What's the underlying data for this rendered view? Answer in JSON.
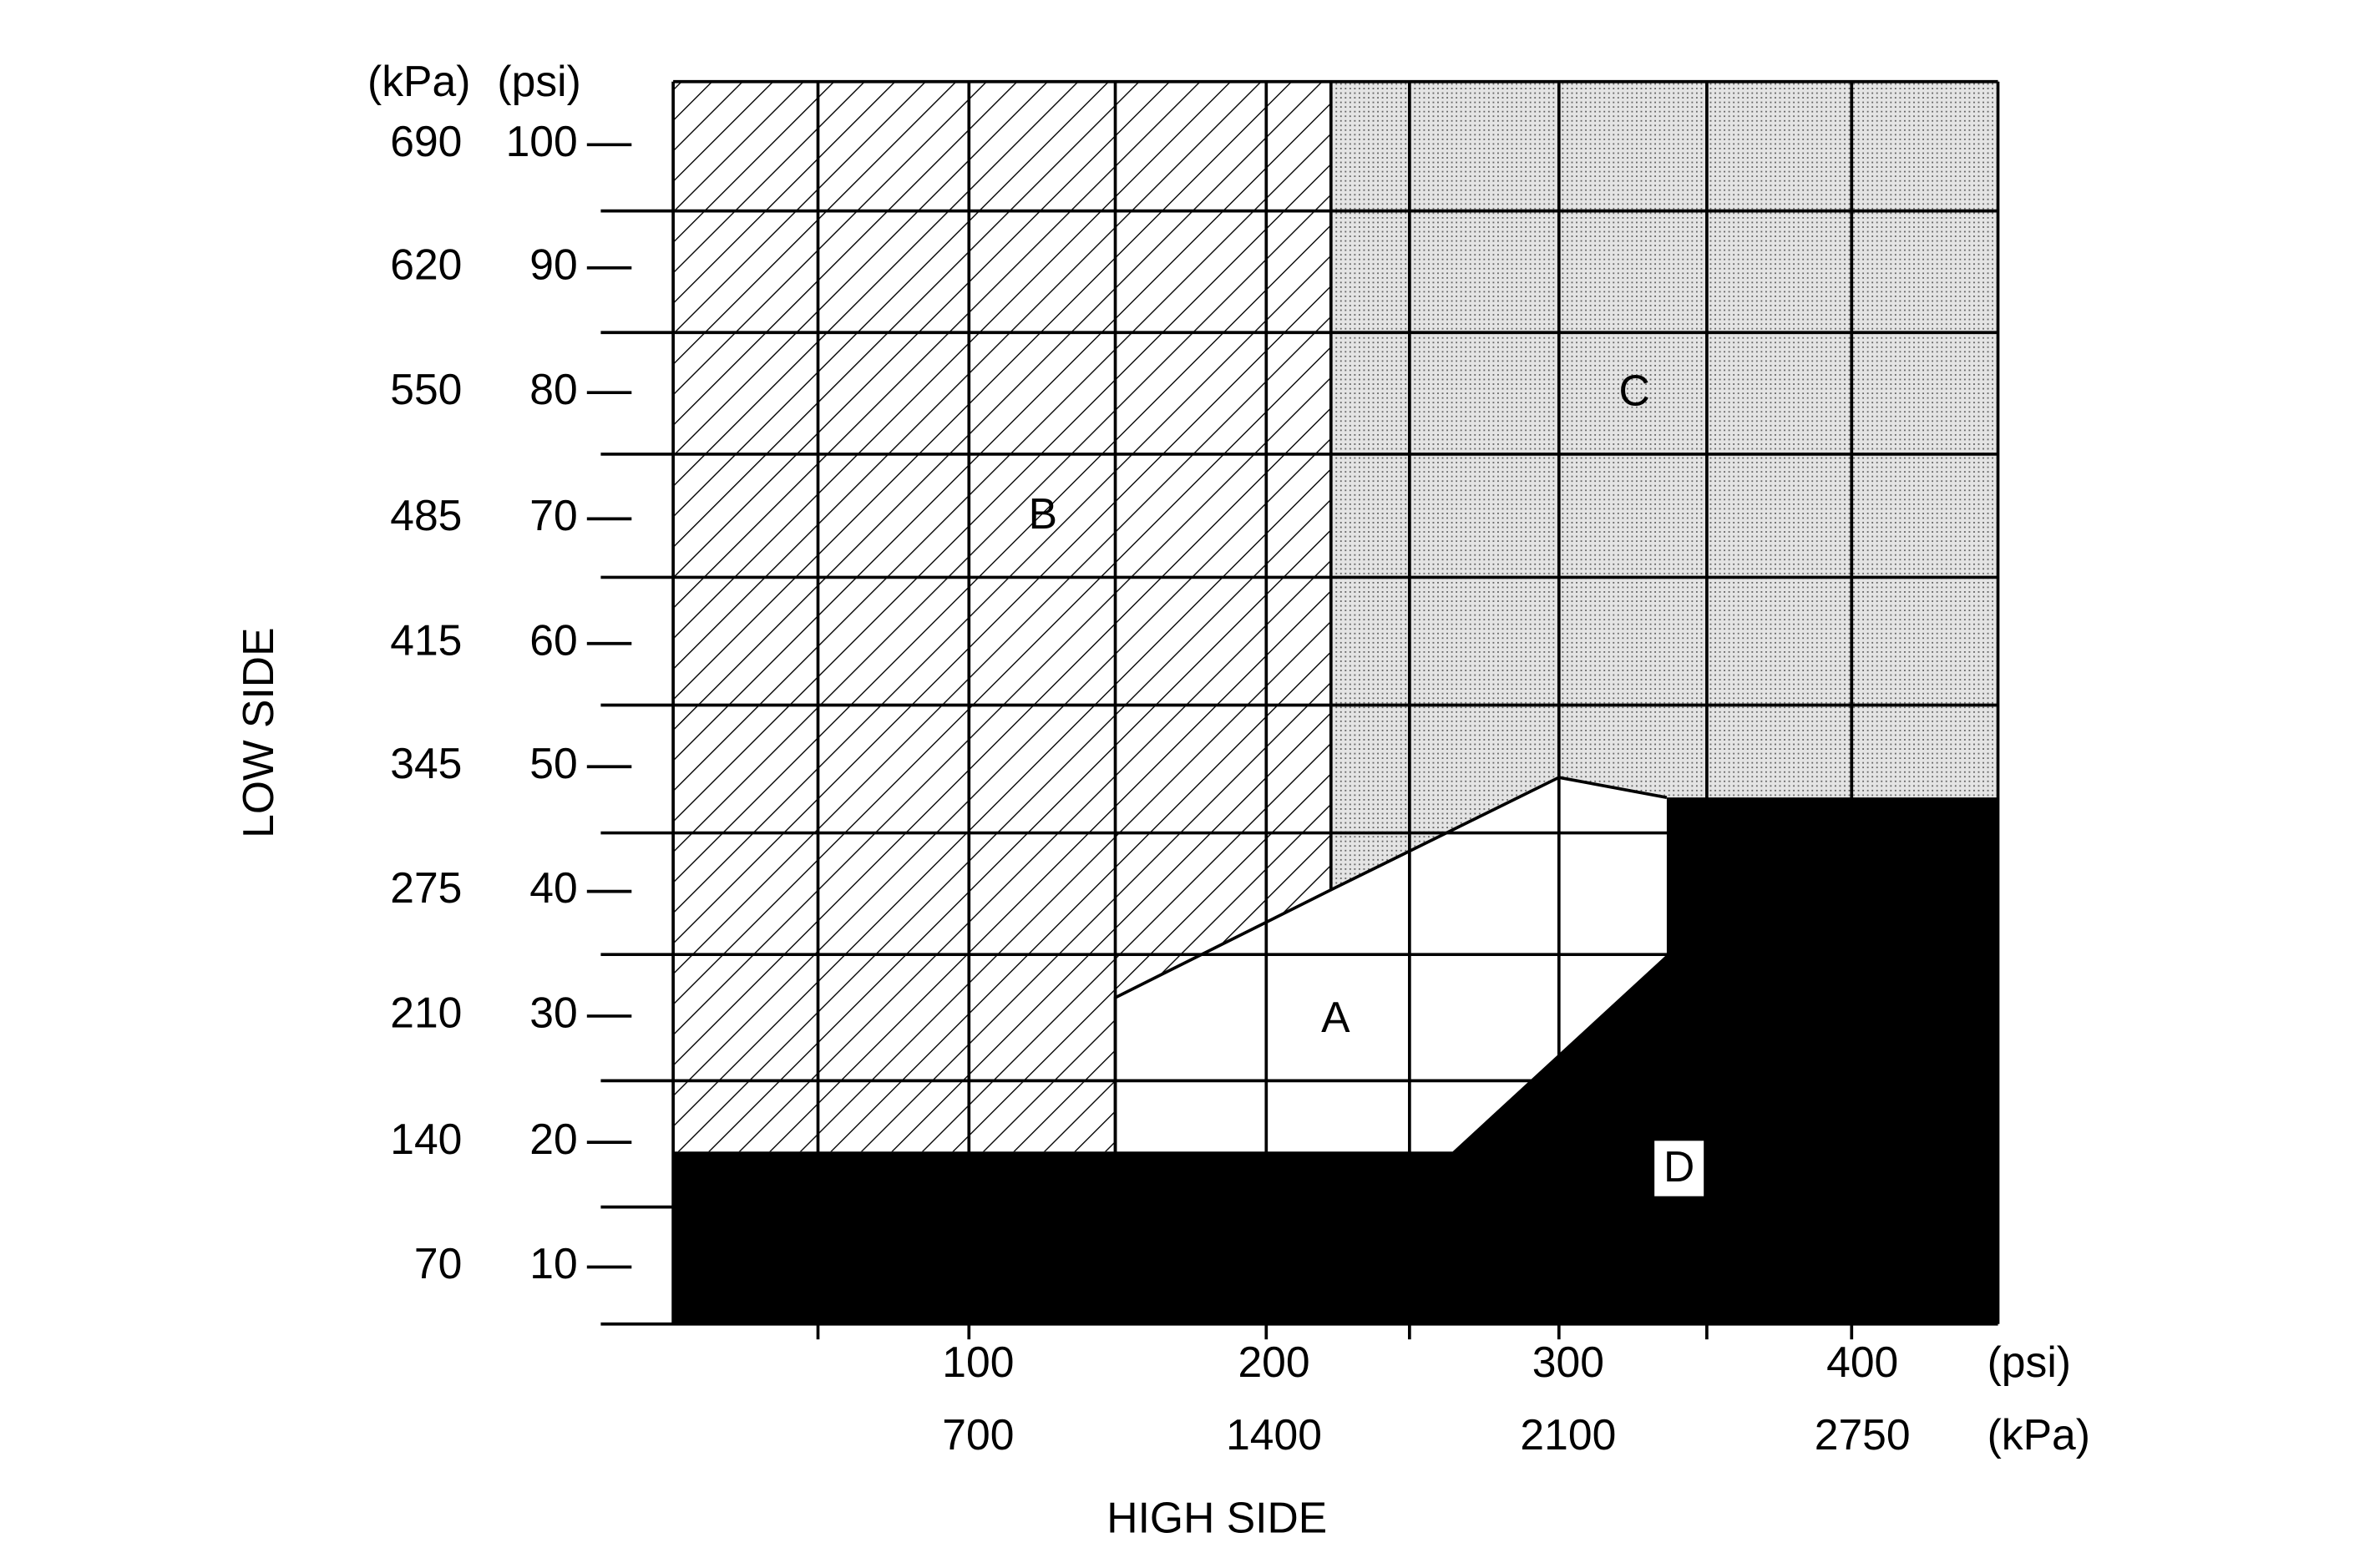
{
  "low_side": {
    "title": "LOW SIDE",
    "unit_kpa": "(kPa)",
    "unit_psi": "(psi)",
    "ticks": [
      {
        "kpa": "690",
        "psi": "100"
      },
      {
        "kpa": "620",
        "psi": "90"
      },
      {
        "kpa": "550",
        "psi": "80"
      },
      {
        "kpa": "485",
        "psi": "70"
      },
      {
        "kpa": "415",
        "psi": "60"
      },
      {
        "kpa": "345",
        "psi": "50"
      },
      {
        "kpa": "275",
        "psi": "40"
      },
      {
        "kpa": "210",
        "psi": "30"
      },
      {
        "kpa": "140",
        "psi": "20"
      },
      {
        "kpa": "70",
        "psi": "10"
      }
    ]
  },
  "high_side": {
    "title": "HIGH SIDE",
    "unit_psi": "(psi)",
    "unit_kpa": "(kPa)",
    "ticks": [
      {
        "psi": "100",
        "kpa": "700"
      },
      {
        "psi": "200",
        "kpa": "1400"
      },
      {
        "psi": "300",
        "kpa": "2100"
      },
      {
        "psi": "400",
        "kpa": "2750"
      }
    ]
  },
  "regions": [
    {
      "label": "A"
    },
    {
      "label": "B"
    },
    {
      "label": "C"
    },
    {
      "label": "D"
    }
  ]
}
